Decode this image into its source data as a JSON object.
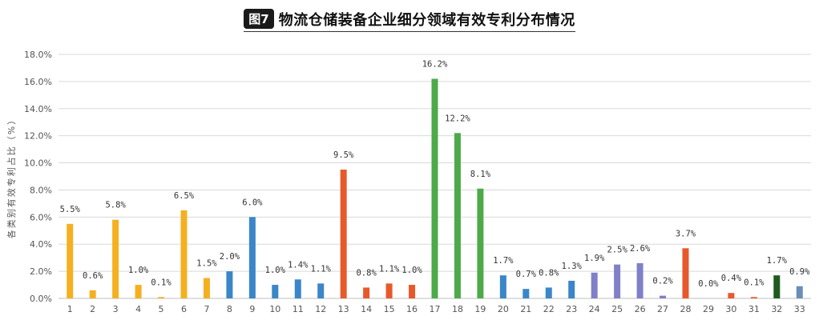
{
  "figure": {
    "badge": "图7",
    "title": "物流仓储装备企业细分领域有效专利分布情况"
  },
  "chart_data": {
    "type": "bar",
    "title": "物流仓储装备企业细分领域有效专利分布情况",
    "xlabel": "",
    "ylabel": "各类别有效专利占比（%）",
    "ylim": [
      0,
      18
    ],
    "yticks": [
      "0.0%",
      "2.0%",
      "4.0%",
      "6.0%",
      "8.0%",
      "10.0%",
      "12.0%",
      "14.0%",
      "16.0%",
      "18.0%"
    ],
    "grid": true,
    "categories": [
      "1",
      "2",
      "3",
      "4",
      "5",
      "6",
      "7",
      "8",
      "9",
      "10",
      "11",
      "12",
      "13",
      "14",
      "15",
      "16",
      "17",
      "18",
      "19",
      "20",
      "21",
      "22",
      "23",
      "24",
      "25",
      "26",
      "27",
      "28",
      "29",
      "30",
      "31",
      "32",
      "33"
    ],
    "values": [
      5.5,
      0.6,
      5.8,
      1.0,
      0.1,
      6.5,
      1.5,
      2.0,
      6.0,
      1.0,
      1.4,
      1.1,
      9.5,
      0.8,
      1.1,
      1.0,
      16.2,
      12.2,
      8.1,
      1.7,
      0.7,
      0.8,
      1.3,
      1.9,
      2.5,
      2.6,
      0.2,
      3.7,
      0.0,
      0.4,
      0.1,
      1.7,
      0.9
    ],
    "labels": [
      "5.5%",
      "0.6%",
      "5.8%",
      "1.0%",
      "0.1%",
      "6.5%",
      "1.5%",
      "2.0%",
      "6.0%",
      "1.0%",
      "1.4%",
      "1.1%",
      "9.5%",
      "0.8%",
      "1.1%",
      "1.0%",
      "16.2%",
      "12.2%",
      "8.1%",
      "1.7%",
      "0.7%",
      "0.8%",
      "1.3%",
      "1.9%",
      "2.5%",
      "2.6%",
      "0.2%",
      "3.7%",
      "0.0%",
      "0.4%",
      "0.1%",
      "1.7%",
      "0.9%"
    ],
    "colors": [
      "#F5B020",
      "#F5B020",
      "#F5B020",
      "#F5B020",
      "#F5B020",
      "#F5B020",
      "#F5B020",
      "#3A86C8",
      "#3A86C8",
      "#3A86C8",
      "#3A86C8",
      "#3A86C8",
      "#E8592A",
      "#E8592A",
      "#E8592A",
      "#E8592A",
      "#4DAA4A",
      "#4DAA4A",
      "#4DAA4A",
      "#3A86C8",
      "#3A86C8",
      "#3A86C8",
      "#3A86C8",
      "#8080C8",
      "#8080C8",
      "#8080C8",
      "#8080C8",
      "#E8592A",
      "#E8592A",
      "#E8592A",
      "#E8592A",
      "#1E5A20",
      "#6A8EB8"
    ]
  }
}
